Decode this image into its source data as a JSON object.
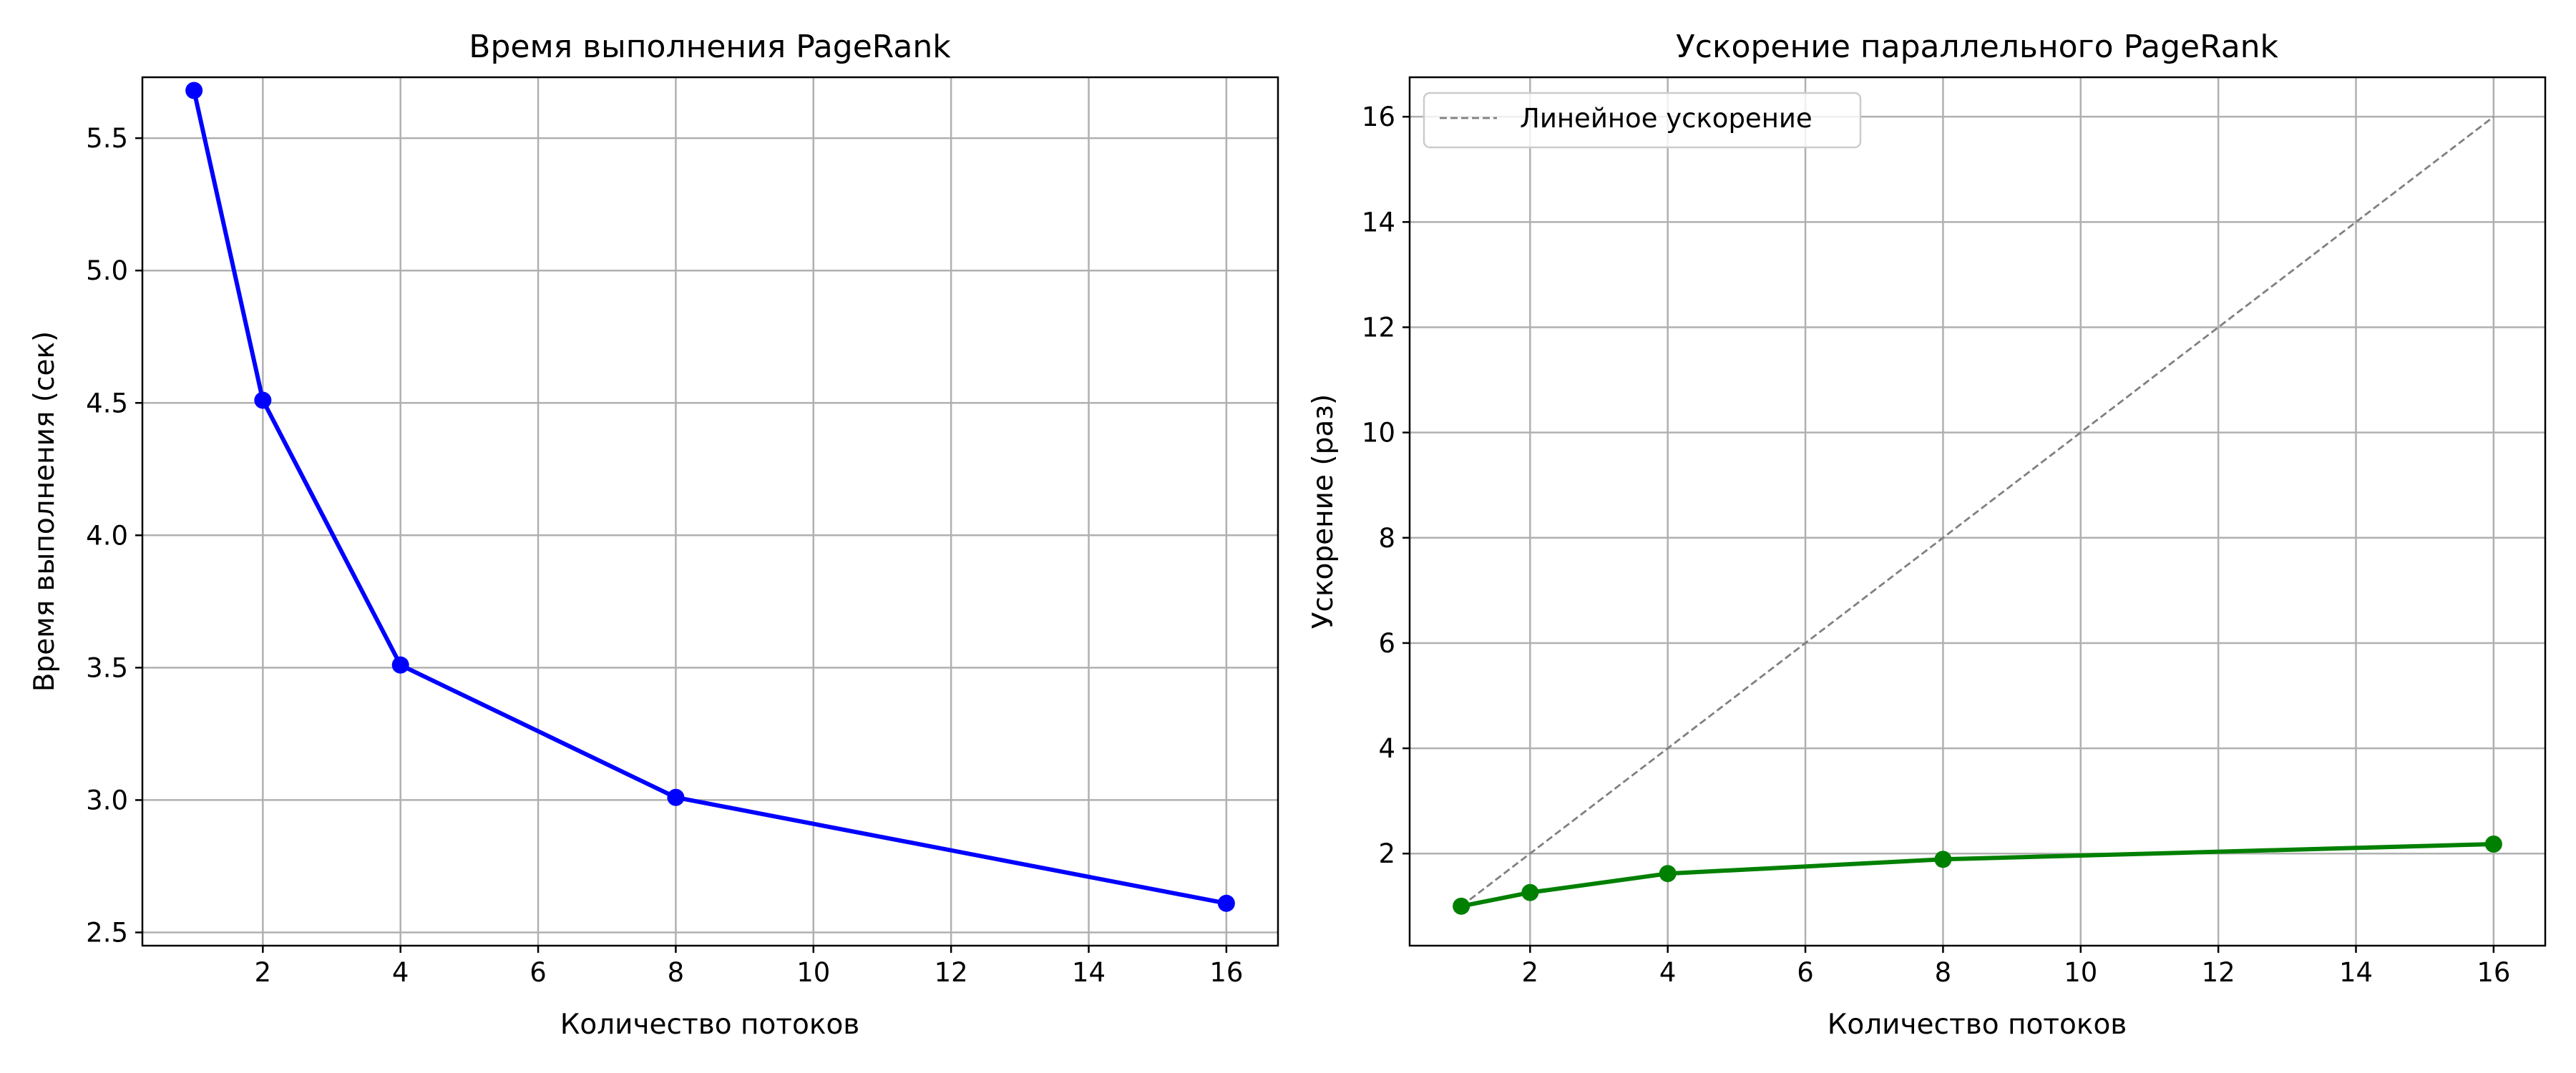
{
  "chart_data": [
    {
      "type": "line",
      "title": "Время выполнения PageRank",
      "xlabel": "Количество потоков",
      "ylabel": "Время выполнения (сек)",
      "xlim": [
        0.25,
        16.75
      ],
      "ylim": [
        2.45,
        5.73
      ],
      "xticks": [
        2,
        4,
        6,
        8,
        10,
        12,
        14,
        16
      ],
      "yticks": [
        2.5,
        3.0,
        3.5,
        4.0,
        4.5,
        5.0,
        5.5
      ],
      "ytick_labels": [
        "2.5",
        "3.0",
        "3.5",
        "4.0",
        "4.5",
        "5.0",
        "5.5"
      ],
      "grid": true,
      "series": [
        {
          "color": "#0000ff",
          "marker": "circle",
          "line_style": "solid",
          "x": [
            1,
            2,
            4,
            8,
            16
          ],
          "y": [
            5.68,
            4.51,
            3.51,
            3.01,
            2.61
          ]
        }
      ]
    },
    {
      "type": "line",
      "title": "Ускорение параллельного PageRank",
      "xlabel": "Количество потоков",
      "ylabel": "Ускорение (раз)",
      "xlim": [
        0.25,
        16.75
      ],
      "ylim": [
        0.25,
        16.75
      ],
      "xticks": [
        2,
        4,
        6,
        8,
        10,
        12,
        14,
        16
      ],
      "yticks": [
        2,
        4,
        6,
        8,
        10,
        12,
        14,
        16
      ],
      "ytick_labels": [
        "2",
        "4",
        "6",
        "8",
        "10",
        "12",
        "14",
        "16"
      ],
      "grid": true,
      "legend": {
        "placement": "top-left",
        "entries": [
          "Линейное ускорение"
        ]
      },
      "series": [
        {
          "color": "#008000",
          "marker": "circle",
          "line_style": "solid",
          "x": [
            1,
            2,
            4,
            8,
            16
          ],
          "y": [
            1.0,
            1.26,
            1.62,
            1.89,
            2.18
          ]
        },
        {
          "name": "Линейное ускорение",
          "color": "#808080",
          "marker": "none",
          "line_style": "dashed",
          "x": [
            1,
            16
          ],
          "y": [
            1,
            16
          ]
        }
      ]
    }
  ]
}
